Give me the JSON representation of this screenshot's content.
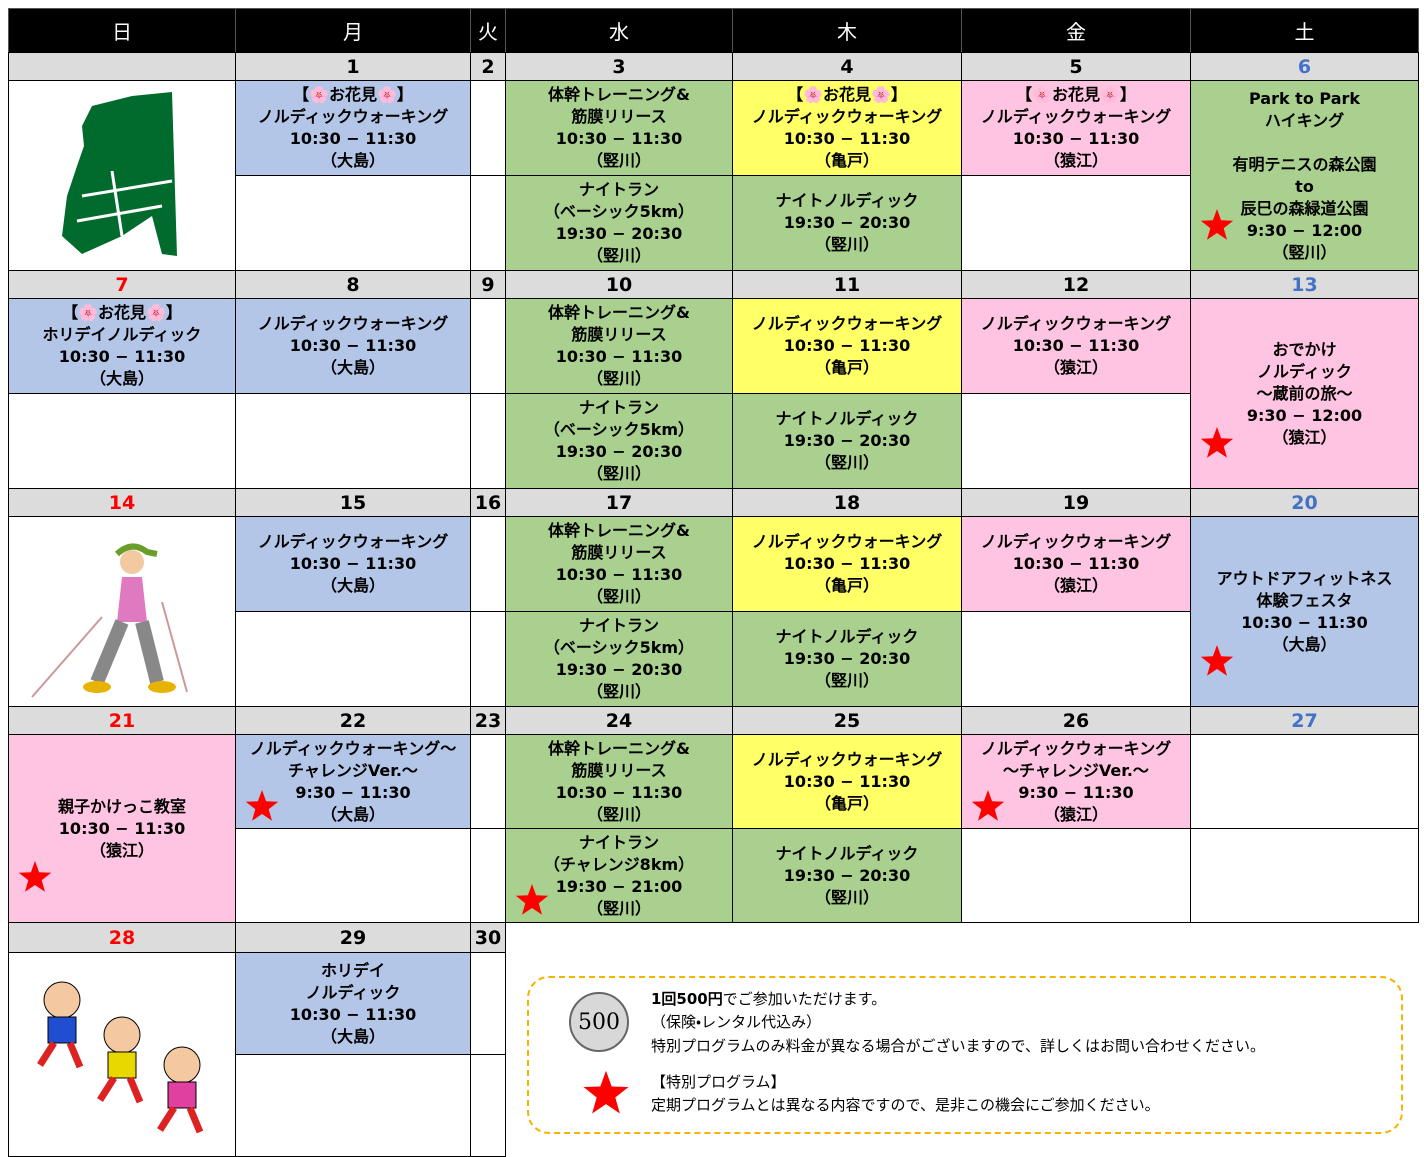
{
  "headers": [
    "日",
    "月",
    "火",
    "水",
    "木",
    "金",
    "土"
  ],
  "weeks": [
    {
      "days": [
        {
          "date": null,
          "slots": []
        },
        {
          "date": "1",
          "slots": [
            {
              "paras": [
                [
                  "【🌸お花見🌸】",
                  "ノルディックウォーキング",
                  "10:30 − 11:30",
                  "（大島）"
                ]
              ],
              "color": "#b4c6e7"
            },
            null
          ]
        },
        {
          "date": "2",
          "slots": [
            null,
            null
          ]
        },
        {
          "date": "3",
          "slots": [
            {
              "paras": [
                [
                  "体幹トレーニング&",
                  "筋膜リリース",
                  "10:30 − 11:30",
                  "（竪川）"
                ]
              ],
              "color": "#a9d08e"
            },
            {
              "paras": [
                [
                  "ナイトラン",
                  "（ベーシック5km）",
                  "19:30 − 20:30",
                  "（竪川）"
                ]
              ],
              "color": "#a9d08e"
            }
          ]
        },
        {
          "date": "4",
          "slots": [
            {
              "paras": [
                [
                  "【🌸お花見🌸】",
                  "ノルディックウォーキング",
                  "10:30 − 11:30",
                  "（亀戸）"
                ]
              ],
              "color": "#ffff66"
            },
            {
              "paras": [
                [
                  "ナイトノルディック",
                  "19:30 − 20:30",
                  "（竪川）"
                ]
              ],
              "color": "#a9d08e"
            }
          ]
        },
        {
          "date": "5",
          "slots": [
            {
              "paras": [
                [
                  "【🌸お花見🌸】",
                  "ノルディックウォーキング",
                  "10:30 − 11:30",
                  "（猿江）"
                ]
              ],
              "color": "#ffc4e1"
            },
            null
          ]
        },
        {
          "date": "6",
          "slots": [
            {
              "paras": [
                [
                  "Park to Park",
                  "ハイキング"
                ],
                [
                  "有明テニスの森公園",
                  "to",
                  "辰巳の森緑道公園",
                  "9:30 − 12:00",
                  "（竪川）"
                ]
              ],
              "color": "#a9d08e",
              "special": true
            }
          ]
        }
      ]
    },
    {
      "days": [
        {
          "date": "7",
          "slots": [
            {
              "paras": [
                [
                  "【🌸お花見🌸】",
                  "ホリデイノルディック",
                  "10:30 − 11:30",
                  "（大島）"
                ]
              ],
              "color": "#b4c6e7"
            },
            null
          ]
        },
        {
          "date": "8",
          "slots": [
            {
              "paras": [
                [
                  "ノルディックウォーキング",
                  "10:30 − 11:30",
                  "（大島）"
                ]
              ],
              "color": "#b4c6e7"
            },
            null
          ]
        },
        {
          "date": "9",
          "slots": [
            null,
            null
          ]
        },
        {
          "date": "10",
          "slots": [
            {
              "paras": [
                [
                  "体幹トレーニング&",
                  "筋膜リリース",
                  "10:30 − 11:30",
                  "（竪川）"
                ]
              ],
              "color": "#a9d08e"
            },
            {
              "paras": [
                [
                  "ナイトラン",
                  "（ベーシック5km）",
                  "19:30 − 20:30",
                  "（竪川）"
                ]
              ],
              "color": "#a9d08e"
            }
          ]
        },
        {
          "date": "11",
          "slots": [
            {
              "paras": [
                [
                  "ノルディックウォーキング",
                  "10:30 − 11:30",
                  "（亀戸）"
                ]
              ],
              "color": "#ffff66"
            },
            {
              "paras": [
                [
                  "ナイトノルディック",
                  "19:30 − 20:30",
                  "（竪川）"
                ]
              ],
              "color": "#a9d08e"
            }
          ]
        },
        {
          "date": "12",
          "slots": [
            {
              "paras": [
                [
                  "ノルディックウォーキング",
                  "10:30 − 11:30",
                  "（猿江）"
                ]
              ],
              "color": "#ffc4e1"
            },
            null
          ]
        },
        {
          "date": "13",
          "slots": [
            {
              "paras": [
                [
                  "おでかけ",
                  "ノルディック",
                  "〜蔵前の旅〜",
                  "9:30 − 12:00",
                  "（猿江）"
                ]
              ],
              "color": "#ffc4e1",
              "special": true
            }
          ]
        }
      ]
    },
    {
      "days": [
        {
          "date": "14",
          "slots": []
        },
        {
          "date": "15",
          "slots": [
            {
              "paras": [
                [
                  "ノルディックウォーキング",
                  "10:30 − 11:30",
                  "（大島）"
                ]
              ],
              "color": "#b4c6e7"
            },
            null
          ]
        },
        {
          "date": "16",
          "slots": [
            null,
            null
          ]
        },
        {
          "date": "17",
          "slots": [
            {
              "paras": [
                [
                  "体幹トレーニング&",
                  "筋膜リリース",
                  "10:30 − 11:30",
                  "（竪川）"
                ]
              ],
              "color": "#a9d08e"
            },
            {
              "paras": [
                [
                  "ナイトラン",
                  "（ベーシック5km）",
                  "19:30 − 20:30",
                  "（竪川）"
                ]
              ],
              "color": "#a9d08e"
            }
          ]
        },
        {
          "date": "18",
          "slots": [
            {
              "paras": [
                [
                  "ノルディックウォーキング",
                  "10:30 − 11:30",
                  "（亀戸）"
                ]
              ],
              "color": "#ffff66"
            },
            {
              "paras": [
                [
                  "ナイトノルディック",
                  "19:30 − 20:30",
                  "（竪川）"
                ]
              ],
              "color": "#a9d08e"
            }
          ]
        },
        {
          "date": "19",
          "slots": [
            {
              "paras": [
                [
                  "ノルディックウォーキング",
                  "10:30 − 11:30",
                  "（猿江）"
                ]
              ],
              "color": "#ffc4e1"
            },
            null
          ]
        },
        {
          "date": "20",
          "slots": [
            {
              "paras": [
                [
                  "アウトドアフィットネス",
                  "体験フェスタ",
                  "10:30 − 11:30",
                  "（大島）"
                ]
              ],
              "color": "#b4c6e7",
              "special": true
            }
          ]
        }
      ]
    },
    {
      "days": [
        {
          "date": "21",
          "slots": [
            {
              "paras": [
                [
                  "親子かけっこ教室",
                  "10:30 − 11:30",
                  "（猿江）"
                ]
              ],
              "color": "#ffc4e1",
              "special": true
            }
          ]
        },
        {
          "date": "22",
          "slots": [
            {
              "paras": [
                [
                  "ノルディックウォーキング〜",
                  "チャレンジVer.〜",
                  "9:30 − 11:30",
                  "（大島）"
                ]
              ],
              "color": "#b4c6e7",
              "special": true
            },
            null
          ]
        },
        {
          "date": "23",
          "slots": [
            null,
            null
          ]
        },
        {
          "date": "24",
          "slots": [
            {
              "paras": [
                [
                  "体幹トレーニング&",
                  "筋膜リリース",
                  "10:30 − 11:30",
                  "（竪川）"
                ]
              ],
              "color": "#a9d08e"
            },
            {
              "paras": [
                [
                  "ナイトラン",
                  "（チャレンジ8km）",
                  "19:30 − 21:00",
                  "（竪川）"
                ]
              ],
              "color": "#a9d08e",
              "special": true
            }
          ]
        },
        {
          "date": "25",
          "slots": [
            {
              "paras": [
                [
                  "ノルディックウォーキング",
                  "10:30 − 11:30",
                  "（亀戸）"
                ]
              ],
              "color": "#ffff66"
            },
            {
              "paras": [
                [
                  "ナイトノルディック",
                  "19:30 − 20:30",
                  "（竪川）"
                ]
              ],
              "color": "#a9d08e"
            }
          ]
        },
        {
          "date": "26",
          "slots": [
            {
              "paras": [
                [
                  "ノルディックウォーキング",
                  "〜チャレンジVer.〜",
                  "9:30 − 11:30",
                  "（猿江）"
                ]
              ],
              "color": "#ffc4e1",
              "special": true
            },
            null
          ]
        },
        {
          "date": "27",
          "slots": [
            null,
            null
          ]
        }
      ]
    },
    {
      "days": [
        {
          "date": "28",
          "slots": []
        },
        {
          "date": "29",
          "slots": [
            {
              "paras": [
                [
                  "ホリデイ",
                  "ノルディック",
                  "10:30 − 11:30",
                  "（大島）"
                ]
              ],
              "color": "#b4c6e7"
            },
            null
          ]
        },
        {
          "date": "30",
          "slots": [
            null,
            null
          ]
        }
      ]
    }
  ],
  "note": {
    "coin": "500",
    "price_bold": "1回500円",
    "price_rest": "でご参加いただけます。",
    "included": "（保険・レンタル代込み）",
    "fee_note": "特別プログラムのみ料金が異なる場合がございますので、詳しくはお問い合わせください。",
    "special_title": "【特別プログラム】",
    "special_text": "定期プログラムとは異なる内容ですので、是非この機会にご参加ください。"
  }
}
